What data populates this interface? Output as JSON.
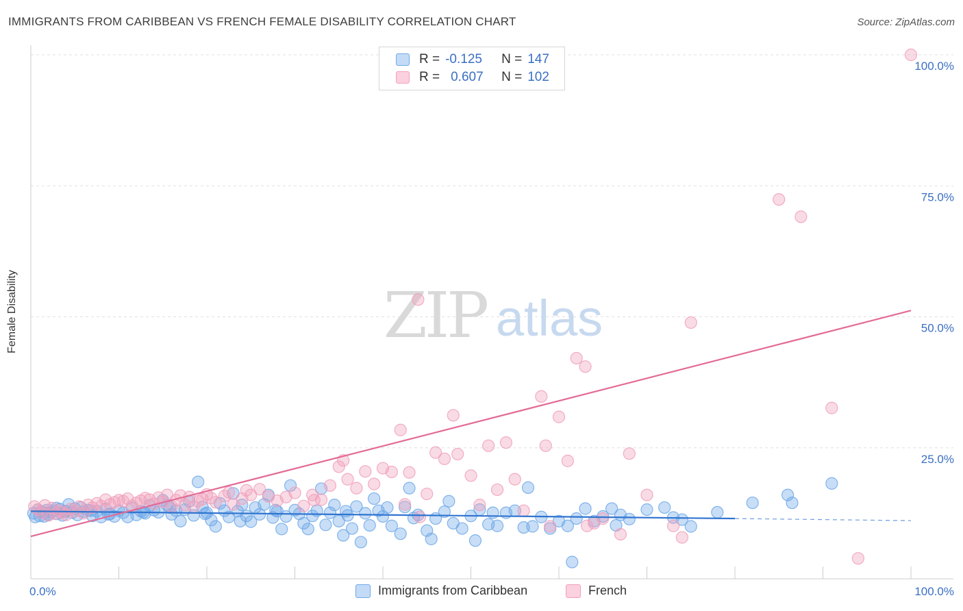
{
  "title": "IMMIGRANTS FROM CARIBBEAN VS FRENCH FEMALE DISABILITY CORRELATION CHART",
  "source": "Source: ZipAtlas.com",
  "watermark": {
    "zip": "ZIP",
    "atlas": "atlas"
  },
  "legend": {
    "r_label": "R =",
    "n_label": "N =",
    "items": [
      {
        "name": "Immigrants from Caribbean",
        "r": "-0.125",
        "n": "147",
        "color": "#6fa8e8"
      },
      {
        "name": "French",
        "r": "0.607",
        "n": "102",
        "color": "#f0a0bb"
      }
    ]
  },
  "colors": {
    "blue": "#6fa8e8",
    "blue_line": "#2f74d0",
    "pink": "#f0a0bb",
    "pink_line": "#e36a96",
    "tick_text": "#3a6fc4"
  },
  "chart_data": {
    "type": "scatter",
    "title": "IMMIGRANTS FROM CARIBBEAN VS FRENCH FEMALE DISABILITY CORRELATION CHART",
    "xlabel": "",
    "ylabel": "Female Disability",
    "xlim": [
      0,
      100
    ],
    "ylim": [
      0,
      100
    ],
    "x_tick_labels": [
      "0.0%",
      "100.0%"
    ],
    "y_tick_labels": [
      "25.0%",
      "50.0%",
      "75.0%",
      "100.0%"
    ],
    "y_ticks": [
      25,
      50,
      75,
      100
    ],
    "grid": "horizontal dashed",
    "legend_position": "top-center and bottom",
    "series": [
      {
        "name": "Immigrants from Caribbean",
        "r": -0.125,
        "n": 147,
        "trend": {
          "x0": 0,
          "y0": 12.9,
          "x1": 80,
          "y1": 11.5,
          "dashed_to": {
            "x": 100,
            "y": 11.1
          }
        },
        "points": [
          [
            0.3,
            12.5
          ],
          [
            0.5,
            11.8
          ],
          [
            0.8,
            13.2
          ],
          [
            1.0,
            12.0
          ],
          [
            1.2,
            12.8
          ],
          [
            1.5,
            11.9
          ],
          [
            1.8,
            13.1
          ],
          [
            2.0,
            12.3
          ],
          [
            2.3,
            12.7
          ],
          [
            2.6,
            13.0
          ],
          [
            3.0,
            12.4
          ],
          [
            3.3,
            13.3
          ],
          [
            3.6,
            12.1
          ],
          [
            4.0,
            12.9
          ],
          [
            4.3,
            14.2
          ],
          [
            4.7,
            12.6
          ],
          [
            5.0,
            13.4
          ],
          [
            5.3,
            12.2
          ],
          [
            5.7,
            13.6
          ],
          [
            6.0,
            12.8
          ],
          [
            6.5,
            13.1
          ],
          [
            7.0,
            12.0
          ],
          [
            7.5,
            12.9
          ],
          [
            8.0,
            11.8
          ],
          [
            8.5,
            13.3
          ],
          [
            9.0,
            12.4
          ],
          [
            9.5,
            11.9
          ],
          [
            10.0,
            13.0
          ],
          [
            10.5,
            12.6
          ],
          [
            11.0,
            11.8
          ],
          [
            11.5,
            13.5
          ],
          [
            12.0,
            12.2
          ],
          [
            12.5,
            12.9
          ],
          [
            13.0,
            12.5
          ],
          [
            13.5,
            14.0
          ],
          [
            14.0,
            13.1
          ],
          [
            14.5,
            12.7
          ],
          [
            15.0,
            15.0
          ],
          [
            15.5,
            14.1
          ],
          [
            16.0,
            12.3
          ],
          [
            16.5,
            13.0
          ],
          [
            17.0,
            11.0
          ],
          [
            17.5,
            13.2
          ],
          [
            18.0,
            14.8
          ],
          [
            18.5,
            12.1
          ],
          [
            19.0,
            18.5
          ],
          [
            19.5,
            13.7
          ],
          [
            20.0,
            12.6
          ],
          [
            20.5,
            11.2
          ],
          [
            21.0,
            10.0
          ],
          [
            21.5,
            14.4
          ],
          [
            22.0,
            13.0
          ],
          [
            22.5,
            11.8
          ],
          [
            23.0,
            16.3
          ],
          [
            23.5,
            12.9
          ],
          [
            24.0,
            14.1
          ],
          [
            24.5,
            12.0
          ],
          [
            25.0,
            10.9
          ],
          [
            25.5,
            13.6
          ],
          [
            26.0,
            12.3
          ],
          [
            26.5,
            14.2
          ],
          [
            27.0,
            16.0
          ],
          [
            27.5,
            11.7
          ],
          [
            28.0,
            12.9
          ],
          [
            28.5,
            9.5
          ],
          [
            29.0,
            11.9
          ],
          [
            29.5,
            17.8
          ],
          [
            30.0,
            13.1
          ],
          [
            30.5,
            12.4
          ],
          [
            31.0,
            10.6
          ],
          [
            31.5,
            9.5
          ],
          [
            32.0,
            12.0
          ],
          [
            32.5,
            13.0
          ],
          [
            33.0,
            17.2
          ],
          [
            33.5,
            10.3
          ],
          [
            34.0,
            12.6
          ],
          [
            34.5,
            14.1
          ],
          [
            35.0,
            11.0
          ],
          [
            35.5,
            8.3
          ],
          [
            36.0,
            12.1
          ],
          [
            36.5,
            9.6
          ],
          [
            37.0,
            13.8
          ],
          [
            37.5,
            7.0
          ],
          [
            38.0,
            12.5
          ],
          [
            38.5,
            10.2
          ],
          [
            39.0,
            15.3
          ],
          [
            39.5,
            13.0
          ],
          [
            40.0,
            11.9
          ],
          [
            40.5,
            13.6
          ],
          [
            41.0,
            10.1
          ],
          [
            42.0,
            8.6
          ],
          [
            42.5,
            13.7
          ],
          [
            43.0,
            17.3
          ],
          [
            43.5,
            11.6
          ],
          [
            44.0,
            12.2
          ],
          [
            45.0,
            9.2
          ],
          [
            45.5,
            7.6
          ],
          [
            46.0,
            11.5
          ],
          [
            47.0,
            12.8
          ],
          [
            47.5,
            14.8
          ],
          [
            48.0,
            10.6
          ],
          [
            49.0,
            9.6
          ],
          [
            50.0,
            12.0
          ],
          [
            50.5,
            7.3
          ],
          [
            51.0,
            13.2
          ],
          [
            52.0,
            10.4
          ],
          [
            52.5,
            12.6
          ],
          [
            53.0,
            10.1
          ],
          [
            54.0,
            12.6
          ],
          [
            55.0,
            13.0
          ],
          [
            56.0,
            9.8
          ],
          [
            56.5,
            17.4
          ],
          [
            57.0,
            10.0
          ],
          [
            58.0,
            11.8
          ],
          [
            59.0,
            9.6
          ],
          [
            60.0,
            11.0
          ],
          [
            61.0,
            10.1
          ],
          [
            61.5,
            3.2
          ],
          [
            62.0,
            11.5
          ],
          [
            63.0,
            13.4
          ],
          [
            64.0,
            11.0
          ],
          [
            65.0,
            11.9
          ],
          [
            66.0,
            13.4
          ],
          [
            66.5,
            10.2
          ],
          [
            67.0,
            12.2
          ],
          [
            68.0,
            11.4
          ],
          [
            70.0,
            13.2
          ],
          [
            72.0,
            13.6
          ],
          [
            73.0,
            11.7
          ],
          [
            74.0,
            11.3
          ],
          [
            75.0,
            10.0
          ],
          [
            78.0,
            12.7
          ],
          [
            82.0,
            14.5
          ],
          [
            86.0,
            16.0
          ],
          [
            86.5,
            14.5
          ],
          [
            91.0,
            18.2
          ],
          [
            23.8,
            11.0
          ],
          [
            15.8,
            13.6
          ],
          [
            8.8,
            12.3
          ],
          [
            3.8,
            12.8
          ],
          [
            6.8,
            13.0
          ],
          [
            12.8,
            12.7
          ],
          [
            19.8,
            12.4
          ],
          [
            27.8,
            13.1
          ],
          [
            35.8,
            12.9
          ],
          [
            1.6,
            12.6
          ],
          [
            2.9,
            13.5
          ]
        ]
      },
      {
        "name": "French",
        "r": 0.607,
        "n": 102,
        "trend": {
          "x0": 0,
          "y0": 8.1,
          "x1": 100,
          "y1": 51.2
        },
        "points": [
          [
            0.4,
            13.8
          ],
          [
            0.8,
            13.2
          ],
          [
            1.2,
            12.6
          ],
          [
            1.6,
            14.0
          ],
          [
            2.0,
            12.1
          ],
          [
            2.4,
            13.5
          ],
          [
            2.8,
            12.4
          ],
          [
            3.2,
            13.0
          ],
          [
            3.6,
            12.7
          ],
          [
            4.0,
            12.2
          ],
          [
            4.5,
            13.3
          ],
          [
            5.0,
            12.9
          ],
          [
            5.5,
            13.8
          ],
          [
            6.0,
            12.5
          ],
          [
            6.5,
            14.1
          ],
          [
            7.0,
            13.6
          ],
          [
            7.5,
            14.4
          ],
          [
            8.0,
            13.9
          ],
          [
            8.5,
            15.1
          ],
          [
            9.0,
            14.2
          ],
          [
            9.5,
            14.6
          ],
          [
            10.0,
            15.0
          ],
          [
            10.5,
            14.8
          ],
          [
            11.0,
            15.3
          ],
          [
            11.5,
            13.9
          ],
          [
            12.0,
            14.5
          ],
          [
            12.5,
            14.9
          ],
          [
            13.0,
            15.4
          ],
          [
            13.5,
            15.1
          ],
          [
            14.0,
            14.3
          ],
          [
            14.5,
            15.5
          ],
          [
            15.0,
            14.7
          ],
          [
            15.5,
            16.0
          ],
          [
            16.0,
            13.8
          ],
          [
            16.5,
            15.0
          ],
          [
            17.0,
            15.9
          ],
          [
            17.5,
            14.1
          ],
          [
            18.0,
            15.6
          ],
          [
            18.5,
            13.7
          ],
          [
            19.0,
            14.8
          ],
          [
            19.5,
            15.2
          ],
          [
            20.0,
            16.1
          ],
          [
            20.5,
            15.4
          ],
          [
            21.0,
            14.6
          ],
          [
            22.0,
            15.8
          ],
          [
            22.5,
            16.5
          ],
          [
            23.0,
            14.2
          ],
          [
            24.0,
            15.3
          ],
          [
            24.5,
            16.9
          ],
          [
            25.0,
            16.0
          ],
          [
            26.0,
            17.1
          ],
          [
            27.0,
            15.7
          ],
          [
            28.0,
            14.9
          ],
          [
            29.0,
            15.6
          ],
          [
            30.0,
            16.4
          ],
          [
            31.0,
            13.9
          ],
          [
            32.0,
            16.0
          ],
          [
            33.0,
            15.1
          ],
          [
            34.0,
            17.8
          ],
          [
            35.0,
            21.4
          ],
          [
            35.5,
            22.6
          ],
          [
            36.0,
            19.0
          ],
          [
            37.0,
            17.3
          ],
          [
            38.0,
            20.5
          ],
          [
            39.0,
            18.1
          ],
          [
            40.0,
            21.1
          ],
          [
            41.0,
            20.4
          ],
          [
            42.0,
            28.4
          ],
          [
            42.5,
            14.2
          ],
          [
            43.0,
            20.3
          ],
          [
            44.0,
            53.3
          ],
          [
            45.0,
            16.2
          ],
          [
            46.0,
            24.1
          ],
          [
            47.0,
            22.9
          ],
          [
            48.0,
            31.2
          ],
          [
            48.5,
            23.8
          ],
          [
            50.0,
            19.7
          ],
          [
            51.0,
            14.1
          ],
          [
            52.0,
            25.4
          ],
          [
            53.0,
            17.0
          ],
          [
            54.0,
            26.0
          ],
          [
            55.0,
            19.0
          ],
          [
            56.0,
            13.0
          ],
          [
            58.0,
            34.8
          ],
          [
            58.5,
            25.4
          ],
          [
            59.0,
            10.0
          ],
          [
            60.0,
            30.9
          ],
          [
            61.0,
            22.5
          ],
          [
            62.0,
            42.1
          ],
          [
            63.0,
            40.5
          ],
          [
            64.0,
            10.6
          ],
          [
            65.0,
            11.5
          ],
          [
            67.0,
            8.5
          ],
          [
            68.0,
            23.9
          ],
          [
            70.0,
            16.0
          ],
          [
            73.0,
            10.1
          ],
          [
            74.0,
            7.9
          ],
          [
            75.0,
            48.9
          ],
          [
            85.0,
            72.4
          ],
          [
            87.5,
            69.1
          ],
          [
            91.0,
            32.6
          ],
          [
            94.0,
            3.9
          ],
          [
            100.0,
            100.0
          ],
          [
            32.2,
            15.0
          ],
          [
            44.2,
            11.8
          ],
          [
            63.2,
            10.1
          ]
        ]
      }
    ]
  }
}
